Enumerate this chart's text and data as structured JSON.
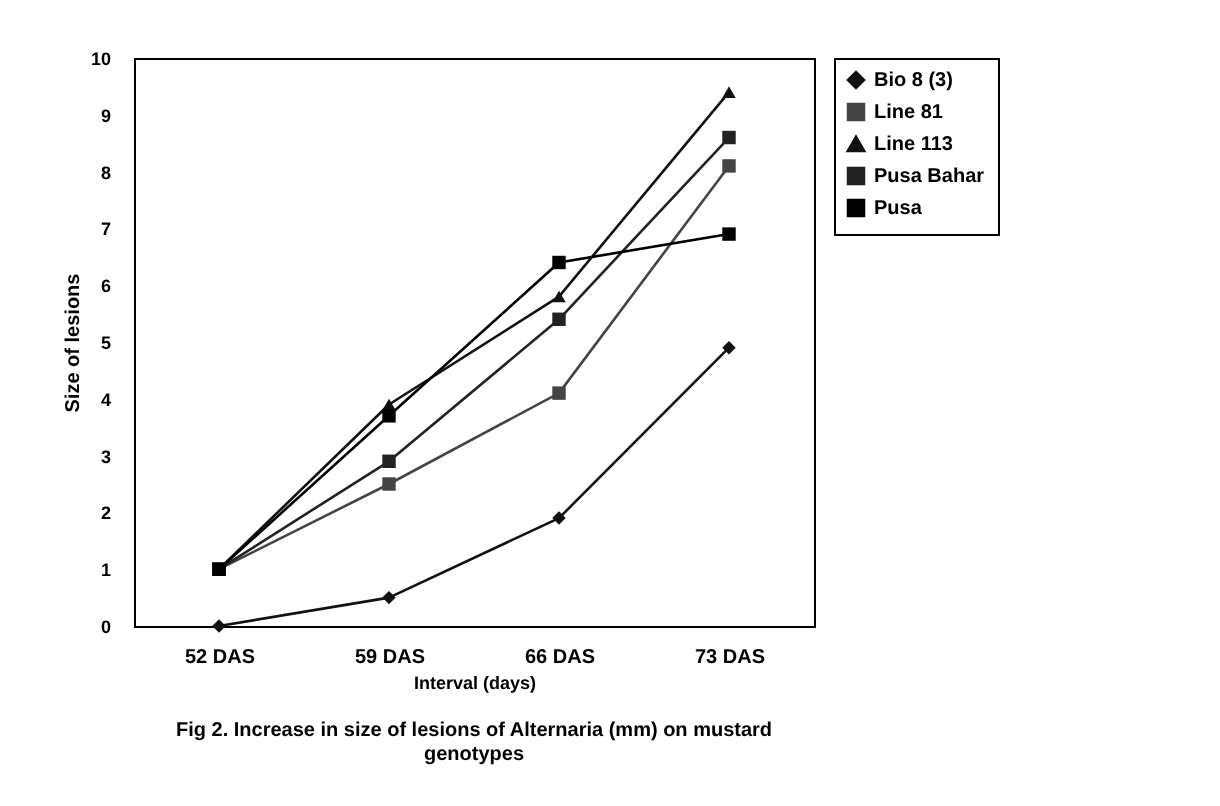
{
  "chart_data": {
    "type": "line",
    "xlabel": "Interval (days)",
    "ylabel": "Size of lesions",
    "categories": [
      "52 DAS",
      "59 DAS",
      "66 DAS",
      "73 DAS"
    ],
    "series": [
      {
        "name": "Bio 8 (3)",
        "color": "#111111",
        "marker": "diamond",
        "values": [
          0,
          0.5,
          1.9,
          4.9
        ]
      },
      {
        "name": "Line 81",
        "color": "#444444",
        "marker": "square",
        "values": [
          1,
          2.5,
          4.1,
          8.1
        ]
      },
      {
        "name": "Line 113",
        "color": "#111111",
        "marker": "triangle",
        "values": [
          1,
          3.9,
          5.8,
          9.4
        ]
      },
      {
        "name": "Pusa Bahar",
        "color": "#222222",
        "marker": "square",
        "values": [
          1,
          2.9,
          5.4,
          8.6
        ]
      },
      {
        "name": "Pusa",
        "color": "#000000",
        "marker": "square",
        "values": [
          1,
          3.7,
          6.4,
          6.9
        ]
      }
    ],
    "ylim": [
      0,
      10
    ],
    "yticks": [
      0,
      1,
      2,
      3,
      4,
      5,
      6,
      7,
      8,
      9,
      10
    ],
    "grid": false,
    "legend": "right",
    "annotations": [
      "Fig 2. Increase in size of lesions of Alternaria (mm) on mustard genotypes"
    ]
  }
}
